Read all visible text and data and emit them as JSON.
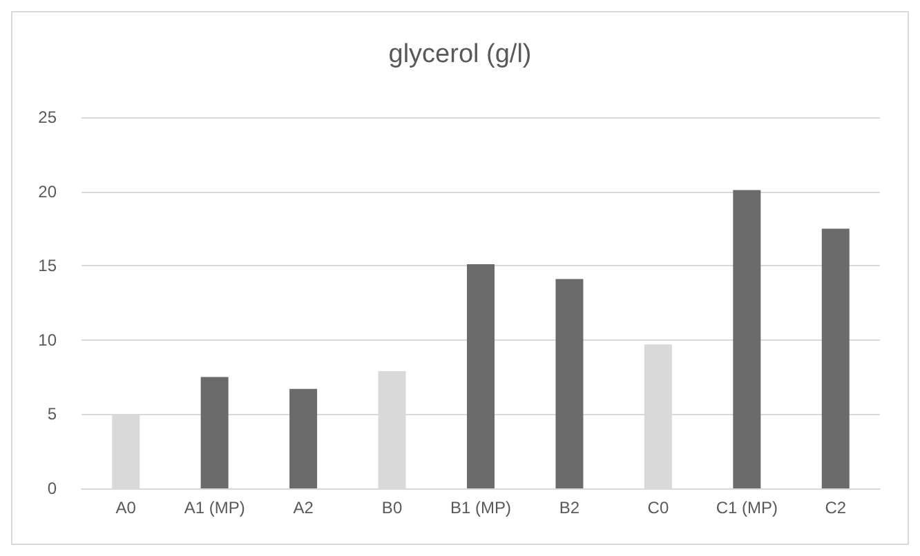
{
  "chart_data": {
    "type": "bar",
    "title": "glycerol (g/l)",
    "categories": [
      "A0",
      "A1 (MP)",
      "A2",
      "B0",
      "B1 (MP)",
      "B2",
      "C0",
      "C1 (MP)",
      "C2"
    ],
    "values": [
      5.0,
      7.5,
      6.7,
      7.9,
      15.1,
      14.1,
      9.7,
      20.1,
      17.5
    ],
    "colors": [
      "#d9d9d9",
      "#6b6b6b",
      "#6b6b6b",
      "#d9d9d9",
      "#6b6b6b",
      "#6b6b6b",
      "#d9d9d9",
      "#6b6b6b",
      "#6b6b6b"
    ],
    "ylim": [
      0,
      25
    ],
    "yticks": [
      0,
      5,
      10,
      15,
      20,
      25
    ],
    "grid": "y"
  }
}
